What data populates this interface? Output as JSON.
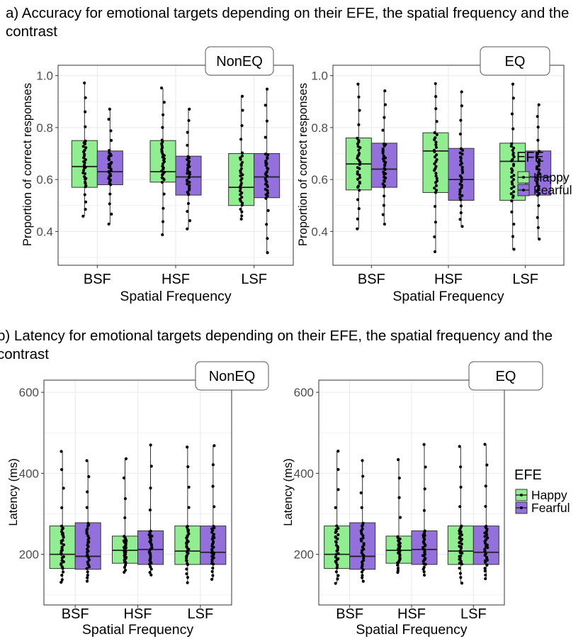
{
  "titles": {
    "a": "a)  Accuracy for emotional targets depending on their EFE, the spatial frequency and the contrast",
    "b": "b)  Latency for emotional targets depending on their EFE, the spatial frequency and the contrast"
  },
  "legend": {
    "title": "EFE",
    "items": [
      {
        "label": "Happy",
        "color": "#90ee90"
      },
      {
        "label": "Fearful",
        "color": "#9370db"
      }
    ]
  },
  "chart_data": [
    {
      "type": "box",
      "id": "acc-noneq",
      "facet": "NonEQ",
      "xlabel": "Spatial Frequency",
      "ylabel": "Proportion of correct responses",
      "categories": [
        "BSF",
        "HSF",
        "LSF"
      ],
      "ylim": [
        0.27,
        1.04
      ],
      "yticks": [
        "0.4",
        "0.6",
        "0.8",
        "1.0"
      ],
      "ytick_values": [
        0.4,
        0.6,
        0.8,
        1.0
      ],
      "series": [
        {
          "name": "Happy",
          "boxes": [
            [
              0.46,
              0.57,
              0.65,
              0.75,
              0.97
            ],
            [
              0.39,
              0.59,
              0.63,
              0.75,
              0.95
            ],
            [
              0.45,
              0.5,
              0.57,
              0.7,
              0.92
            ]
          ]
        },
        {
          "name": "Fearful",
          "boxes": [
            [
              0.43,
              0.58,
              0.63,
              0.71,
              0.87
            ],
            [
              0.41,
              0.54,
              0.61,
              0.69,
              0.87
            ],
            [
              0.32,
              0.53,
              0.61,
              0.7,
              0.95
            ]
          ]
        }
      ]
    },
    {
      "type": "box",
      "id": "acc-eq",
      "facet": "EQ",
      "xlabel": "Spatial Frequency",
      "ylabel": "Proportion of correct responses",
      "categories": [
        "BSF",
        "HSF",
        "LSF"
      ],
      "ylim": [
        0.27,
        1.04
      ],
      "yticks": [
        "0.4",
        "0.6",
        "0.8",
        "1.0"
      ],
      "ytick_values": [
        0.4,
        0.6,
        0.8,
        1.0
      ],
      "series": [
        {
          "name": "Happy",
          "boxes": [
            [
              0.41,
              0.56,
              0.66,
              0.76,
              0.97
            ],
            [
              0.32,
              0.55,
              0.71,
              0.78,
              0.97
            ],
            [
              0.33,
              0.52,
              0.67,
              0.74,
              0.97
            ]
          ]
        },
        {
          "name": "Fearful",
          "boxes": [
            [
              0.43,
              0.57,
              0.64,
              0.74,
              0.94
            ],
            [
              0.42,
              0.52,
              0.6,
              0.72,
              0.94
            ],
            [
              0.37,
              0.54,
              0.61,
              0.71,
              0.89
            ]
          ]
        }
      ]
    },
    {
      "type": "box",
      "id": "lat-noneq",
      "facet": "NonEQ",
      "xlabel": "Spatial Frequency",
      "ylabel": "Latency (ms)",
      "categories": [
        "BSF",
        "HSF",
        "LSF"
      ],
      "ylim": [
        75,
        630
      ],
      "yticks": [
        "200",
        "400",
        "600"
      ],
      "ytick_values": [
        200,
        400,
        600
      ],
      "series": [
        {
          "name": "Happy",
          "boxes": [
            [
              130,
              165,
              200,
              270,
              455
            ],
            [
              155,
              178,
              210,
              245,
              435
            ],
            [
              130,
              175,
              208,
              270,
              465
            ]
          ]
        },
        {
          "name": "Fearful",
          "boxes": [
            [
              135,
              163,
              195,
              278,
              430
            ],
            [
              150,
              175,
              212,
              258,
              470
            ],
            [
              140,
              175,
              205,
              270,
              470
            ]
          ]
        }
      ]
    },
    {
      "type": "box",
      "id": "lat-eq",
      "facet": "EQ",
      "xlabel": "Spatial Frequency",
      "ylabel": "Latency (ms)",
      "categories": [
        "BSF",
        "HSF",
        "LSF"
      ],
      "ylim": [
        75,
        630
      ],
      "yticks": [
        "200",
        "400",
        "600"
      ],
      "ytick_values": [
        200,
        400,
        600
      ],
      "series": [
        {
          "name": "Happy",
          "boxes": [
            [
              130,
              165,
              200,
              270,
              455
            ],
            [
              155,
              178,
              210,
              245,
              435
            ],
            [
              130,
              175,
              208,
              270,
              465
            ]
          ]
        },
        {
          "name": "Fearful",
          "boxes": [
            [
              135,
              163,
              195,
              278,
              430
            ],
            [
              150,
              175,
              212,
              258,
              470
            ],
            [
              140,
              175,
              205,
              270,
              470
            ]
          ]
        }
      ]
    }
  ]
}
